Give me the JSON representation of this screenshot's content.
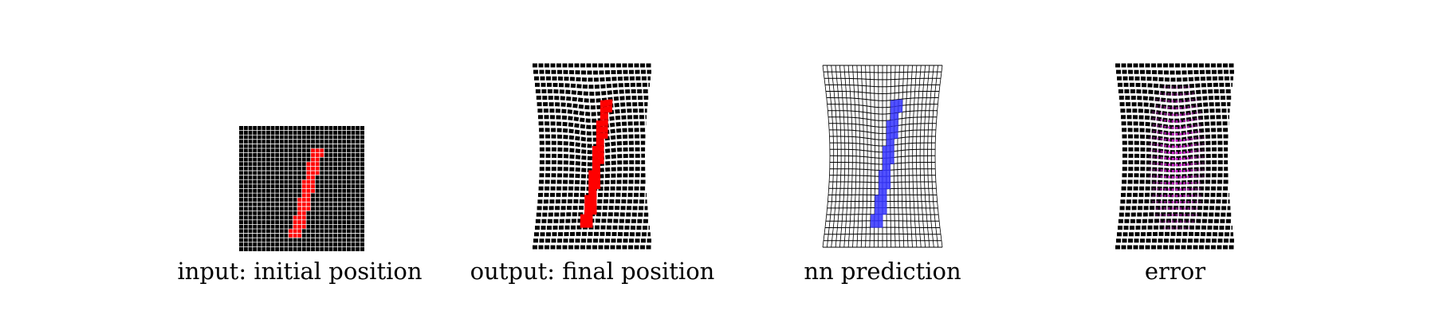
{
  "panels": [
    {
      "caption": "input: initial position",
      "mode": "input"
    },
    {
      "caption": "output: final position",
      "mode": "output"
    },
    {
      "caption": "nn prediction",
      "mode": "prediction"
    },
    {
      "caption": "error",
      "mode": "error"
    }
  ],
  "colors": {
    "background": "#ffffff",
    "mesh": "#000000",
    "grid_line": "#ffffff",
    "digit_stroke": "#ff0000",
    "prediction_stroke": "#3333ff",
    "error_overlay": "#d020d0"
  }
}
